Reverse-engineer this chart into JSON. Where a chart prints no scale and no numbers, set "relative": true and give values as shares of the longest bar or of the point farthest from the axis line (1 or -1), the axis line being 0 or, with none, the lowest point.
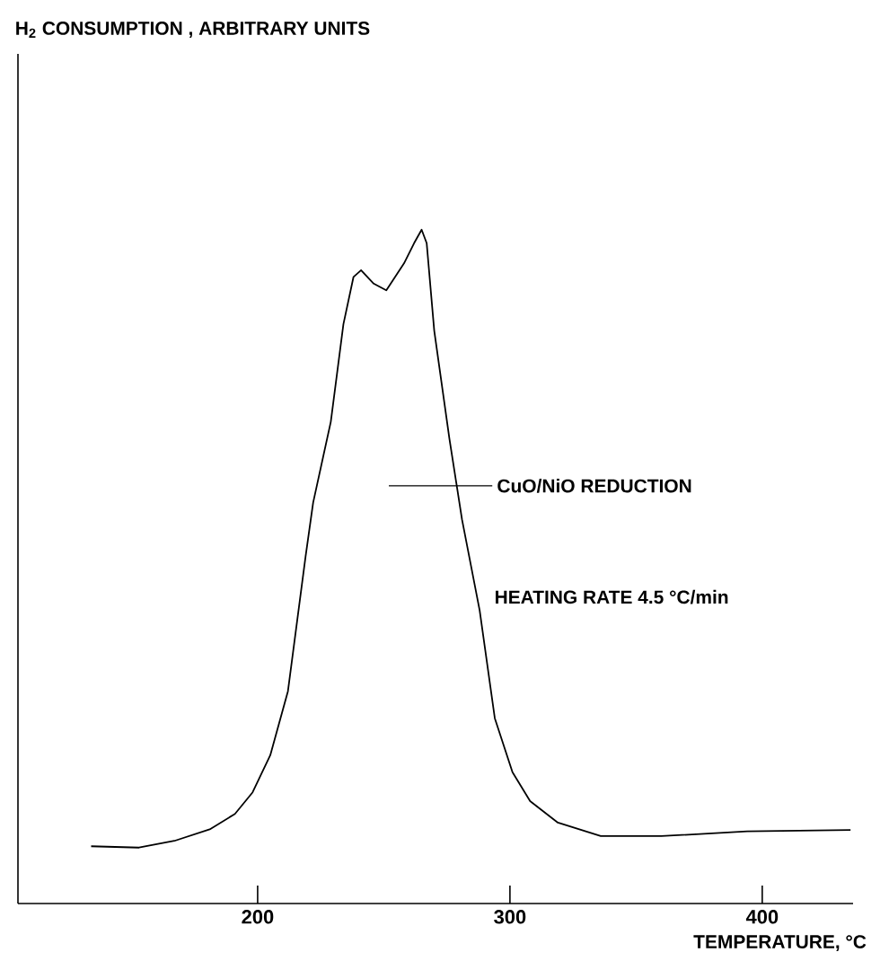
{
  "chart_data": {
    "type": "line",
    "relative": true,
    "xlabel": "TEMPERATURE, °C",
    "xlim": [
      105,
      436
    ],
    "xticks": [
      200,
      300,
      400
    ],
    "grid": false,
    "color": "#000000",
    "x": [
      134,
      153,
      167,
      181,
      191,
      198,
      205,
      212,
      219,
      222,
      229,
      234,
      238,
      241,
      246,
      251,
      258,
      262,
      265,
      267,
      270,
      276,
      281,
      288,
      294,
      301,
      308,
      319,
      336,
      360,
      394,
      435
    ],
    "values": [
      0.085,
      0.083,
      0.093,
      0.11,
      0.133,
      0.165,
      0.22,
      0.315,
      0.515,
      0.595,
      0.715,
      0.86,
      0.93,
      0.94,
      0.92,
      0.91,
      0.95,
      0.98,
      1.0,
      0.98,
      0.85,
      0.69,
      0.57,
      0.435,
      0.275,
      0.195,
      0.152,
      0.12,
      0.1,
      0.1,
      0.107,
      0.109
    ],
    "annotations": [
      "H$_{2}$ CONSUMPTION , ARBITRARY UNITS",
      {
        "text": "CuO/NiO REDUCTION",
        "x": 279,
        "y": 0.62
      },
      "HEATING RATE 4.5 °C/min"
    ]
  }
}
